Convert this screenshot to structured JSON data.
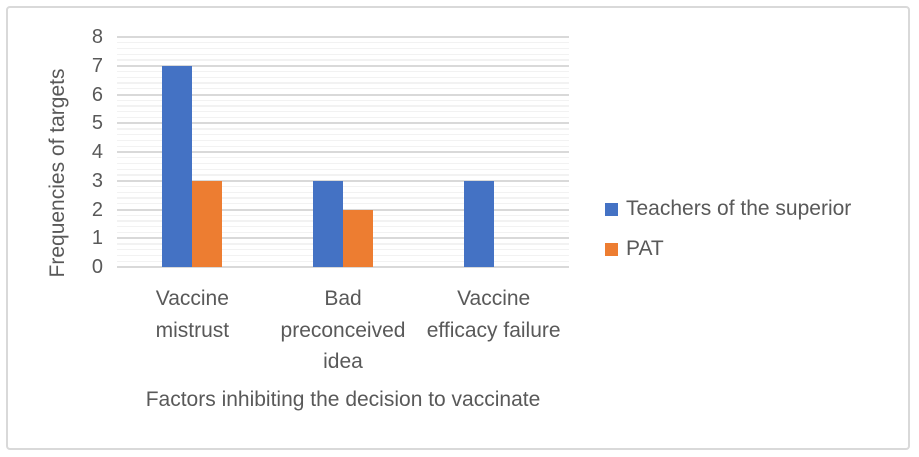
{
  "chart_data": {
    "type": "bar",
    "categories": [
      "Vaccine mistrust",
      "Bad preconceived idea",
      "Vaccine efficacy failure"
    ],
    "series": [
      {
        "name": "Teachers of the superior",
        "color": "#4472C4",
        "values": [
          7,
          3,
          3
        ]
      },
      {
        "name": "PAT",
        "color": "#ED7D31",
        "values": [
          3,
          2,
          0
        ]
      }
    ],
    "title": "",
    "xlabel": "Factors inhibiting the decision to vaccinate",
    "ylabel": "Frequencies of targets",
    "ylim": [
      0,
      8
    ],
    "yticks": [
      0,
      1,
      2,
      3,
      4,
      5,
      6,
      7,
      8
    ],
    "minor_tick_step": 0.2,
    "grid": "horizontal major+minor",
    "legend_position": "right",
    "note": "zero values render no bar"
  },
  "style": {
    "text_color": "#595959",
    "series_blue": "#4472C4",
    "series_orange": "#ED7D31",
    "major_gridline_color": "#D9D9D9",
    "minor_gridline_color": "#F2F2F2",
    "axis_line_color": "#D9D9D9",
    "frame_border_color": "#D9D9D9",
    "background": "#FFFFFF"
  }
}
